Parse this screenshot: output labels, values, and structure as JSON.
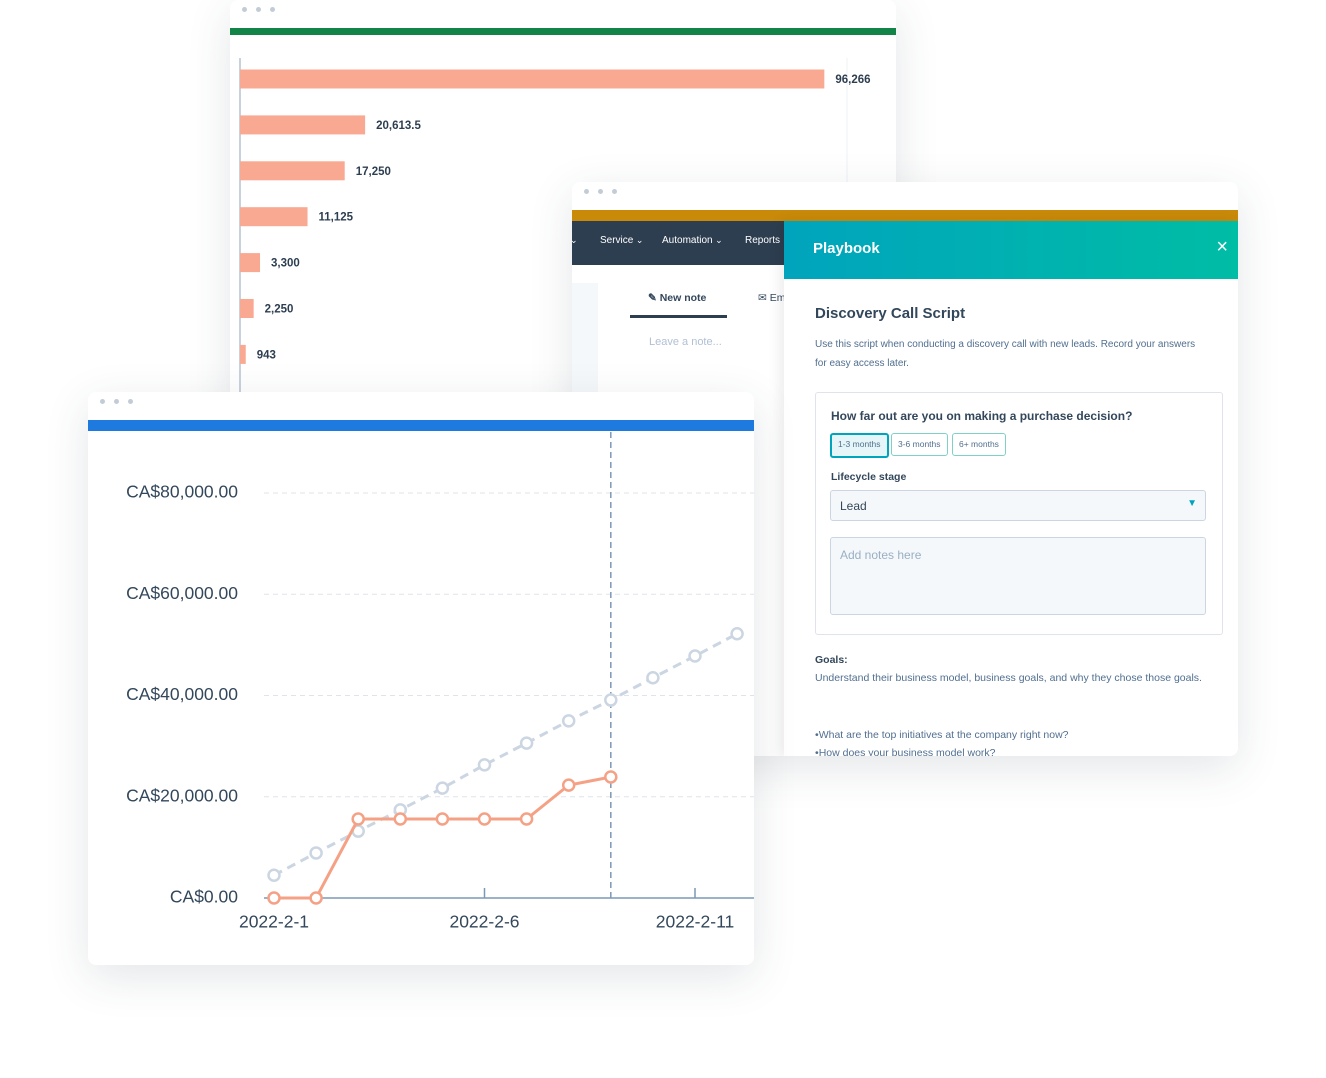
{
  "chart_data": [
    {
      "type": "bar",
      "orientation": "horizontal",
      "values": [
        96266,
        20613.5,
        17250,
        11125,
        3300,
        2250,
        943
      ],
      "value_labels": [
        "96,266",
        "20,613.5",
        "17,250",
        "11,125",
        "3,300",
        "2,250",
        "943"
      ],
      "color": "#f9a891",
      "xlim": [
        0,
        100000
      ]
    },
    {
      "type": "line",
      "categories": [
        "2022-2-1",
        null,
        null,
        null,
        null,
        "2022-2-6",
        null,
        null,
        null,
        null,
        "2022-2-11",
        null
      ],
      "series": [
        {
          "color": "#cbd6e2",
          "dashed": true,
          "values": [
            4500,
            8900,
            13200,
            17400,
            21700,
            26300,
            30600,
            35000,
            39100,
            43500,
            47800,
            52200
          ]
        },
        {
          "color": "#f5a185",
          "dashed": false,
          "values": [
            0,
            0,
            15600,
            15600,
            15600,
            15600,
            15600,
            22300,
            23900,
            null,
            null,
            null
          ]
        }
      ],
      "ylim": [
        0,
        80000
      ],
      "yticks": [
        {
          "value": 0,
          "label": "CA$0.00"
        },
        {
          "value": 20000,
          "label": "CA$20,000.00"
        },
        {
          "value": 40000,
          "label": "CA$40,000.00"
        },
        {
          "value": 60000,
          "label": "CA$60,000.00"
        },
        {
          "value": 80000,
          "label": "CA$80,000.00"
        }
      ],
      "grid": true
    }
  ],
  "crm": {
    "nav": [
      "Service",
      "Automation",
      "Reports"
    ],
    "tabs": [
      "New note",
      "Email"
    ],
    "note_placeholder": "Leave a note..."
  },
  "playbook": {
    "title": "Playbook",
    "script_title": "Discovery Call Script",
    "description": "Use this script when conducting a discovery call with new leads. Record your answers for easy access later.",
    "question": "How far out are you on making a purchase decision?",
    "options": [
      "1-3 months",
      "3-6 months",
      "6+ months"
    ],
    "field_label": "Lifecycle stage",
    "field_value": "Lead",
    "notes_placeholder": "Add notes here",
    "goals_label": "Goals:",
    "goals_text": "Understand their business model, business goals, and why they chose those goals.",
    "bullets": [
      "What are the top initiatives at the company right now?",
      "How does your business model work?"
    ]
  }
}
